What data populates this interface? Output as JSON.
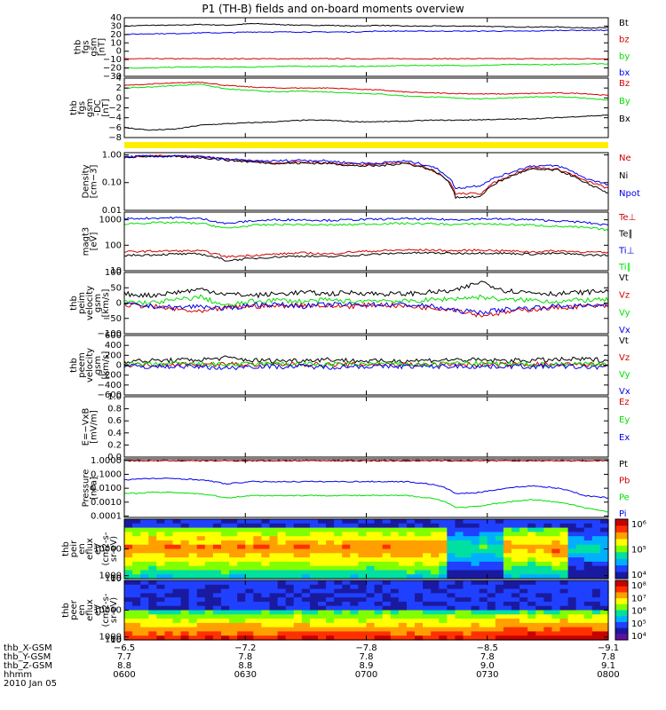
{
  "title": "P1 (TH-B) fields and on-board moments overview",
  "colors": {
    "black": "#000000",
    "red": "#d40000",
    "green": "#00e000",
    "blue": "#0000ee",
    "yellow": "#ffee00"
  },
  "chart_data": [
    {
      "type": "line",
      "ylabel": [
        "thb",
        "fgs",
        "gsm",
        "[nT]"
      ],
      "ylim": [
        -30,
        40
      ],
      "yticks": [
        "40",
        "30",
        "20",
        "10",
        "0",
        "−10",
        "−20",
        "−30"
      ],
      "tickvals": [
        40,
        30,
        20,
        10,
        0,
        -10,
        -20,
        -30
      ],
      "legend": [
        "Bt",
        "bz",
        "by",
        "bx"
      ],
      "series": [
        {
          "name": "Bt",
          "color": "black",
          "values": [
            30,
            31,
            31,
            32,
            31,
            33,
            32,
            31,
            31,
            30,
            31,
            30,
            30,
            30,
            30,
            29,
            29,
            29,
            28,
            28
          ]
        },
        {
          "name": "bz",
          "color": "red",
          "values": [
            -9,
            -9,
            -9,
            -9,
            -9,
            -9,
            -9,
            -9,
            -9,
            -9,
            -9,
            -9,
            -9,
            -9,
            -9,
            -9,
            -9,
            -9,
            -9,
            -9
          ]
        },
        {
          "name": "by",
          "color": "green",
          "values": [
            -20,
            -20,
            -19,
            -19,
            -19,
            -19,
            -18,
            -18,
            -18,
            -18,
            -18,
            -17,
            -17,
            -17,
            -17,
            -16,
            -16,
            -16,
            -15,
            -15
          ]
        },
        {
          "name": "bx",
          "color": "blue",
          "values": [
            20,
            21,
            21,
            22,
            22,
            23,
            23,
            23,
            23,
            23,
            24,
            24,
            24,
            24,
            24,
            24,
            24,
            25,
            25,
            25
          ]
        }
      ]
    },
    {
      "type": "line",
      "ylabel": [
        "thb",
        "fgs",
        "gsm",
        "-DC",
        "[nT]"
      ],
      "ylim": [
        -8,
        4
      ],
      "yticks": [
        "4",
        "2",
        "0",
        "−2",
        "−4",
        "−6",
        "−8"
      ],
      "tickvals": [
        4,
        2,
        0,
        -2,
        -4,
        -6,
        -8
      ],
      "legend": [
        "Bz",
        "By",
        "Bx"
      ],
      "series": [
        {
          "name": "Bz",
          "color": "red",
          "values": [
            2.5,
            2.8,
            3,
            3.2,
            2.5,
            2.2,
            2,
            2,
            2,
            1.8,
            1.6,
            1.2,
            1,
            0.9,
            0.8,
            0.8,
            0.9,
            1,
            0.9,
            0.5
          ]
        },
        {
          "name": "By",
          "color": "green",
          "values": [
            2,
            2.2,
            2.5,
            2.8,
            1.8,
            1.5,
            1.2,
            1.4,
            1.2,
            1,
            0.8,
            0.4,
            0.2,
            0,
            -0.2,
            0,
            0.2,
            0.2,
            0,
            -0.4
          ]
        },
        {
          "name": "Bx",
          "color": "black",
          "values": [
            -6,
            -6.5,
            -6.3,
            -5.5,
            -5.2,
            -5,
            -4.8,
            -4.5,
            -4.5,
            -4.8,
            -4.8,
            -4.7,
            -4.5,
            -4.5,
            -4.4,
            -4.3,
            -4.2,
            -4,
            -3.7,
            -3.5
          ]
        }
      ]
    },
    {
      "type": "line",
      "ylabel": [
        "Density",
        "[cm−3]"
      ],
      "yscale": "log",
      "ylim": [
        0.01,
        1.2
      ],
      "yticks": [
        "1.00",
        "0.10",
        "0.01"
      ],
      "tickvals": [
        1,
        0.1,
        0.01
      ],
      "legend": [
        "Ne",
        "Ni",
        "Npot"
      ],
      "series": [
        {
          "name": "Ne",
          "color": "red",
          "values": [
            0.8,
            0.9,
            0.9,
            0.85,
            0.7,
            0.6,
            0.5,
            0.55,
            0.5,
            0.45,
            0.45,
            0.55,
            0.3,
            0.04,
            0.04,
            0.15,
            0.35,
            0.3,
            0.12,
            0.06
          ]
        },
        {
          "name": "Ni",
          "color": "black",
          "values": [
            0.8,
            0.9,
            0.85,
            0.8,
            0.65,
            0.55,
            0.5,
            0.5,
            0.5,
            0.4,
            0.4,
            0.5,
            0.3,
            0.03,
            0.03,
            0.14,
            0.3,
            0.28,
            0.1,
            0.04
          ]
        },
        {
          "name": "Npot",
          "color": "blue",
          "values": [
            0.85,
            0.9,
            0.9,
            0.85,
            0.7,
            0.6,
            0.6,
            0.65,
            0.6,
            0.5,
            0.5,
            0.6,
            0.4,
            0.06,
            0.08,
            0.2,
            0.4,
            0.4,
            0.15,
            0.08
          ]
        }
      ]
    },
    {
      "type": "line",
      "ylabel": [
        "magt3",
        "[eV]"
      ],
      "yscale": "log",
      "ylim": [
        10,
        2000
      ],
      "yticks": [
        "1000",
        "100",
        "10"
      ],
      "tickvals": [
        1000,
        100,
        10
      ],
      "legend": [
        "Te⊥",
        "Te∥",
        "Ti⊥",
        "Ti∥"
      ],
      "series": [
        {
          "name": "Te⊥",
          "color": "red",
          "values": [
            55,
            58,
            60,
            60,
            35,
            40,
            45,
            50,
            45,
            55,
            60,
            65,
            65,
            60,
            65,
            60,
            55,
            60,
            55,
            50
          ]
        },
        {
          "name": "Te∥",
          "color": "black",
          "values": [
            40,
            42,
            45,
            45,
            25,
            30,
            35,
            38,
            35,
            40,
            45,
            50,
            50,
            48,
            50,
            48,
            45,
            48,
            42,
            40
          ]
        },
        {
          "name": "Ti⊥",
          "color": "blue",
          "values": [
            1100,
            1150,
            1200,
            1100,
            700,
            900,
            1000,
            1000,
            950,
            1000,
            1050,
            1100,
            1050,
            1000,
            1100,
            1050,
            1000,
            900,
            800,
            600
          ]
        },
        {
          "name": "Ti∥",
          "color": "green",
          "values": [
            700,
            750,
            780,
            720,
            450,
            600,
            650,
            650,
            620,
            650,
            700,
            720,
            700,
            650,
            700,
            650,
            620,
            550,
            500,
            400
          ]
        }
      ]
    },
    {
      "type": "line",
      "ylabel": [
        "thb",
        "peim",
        "velocity",
        "gsm",
        "[km/s]"
      ],
      "ylim": [
        -100,
        100
      ],
      "yticks": [
        "100",
        "50",
        "0",
        "−50",
        "−100"
      ],
      "tickvals": [
        100,
        50,
        0,
        -50,
        -100
      ],
      "legend": [
        "Vt",
        "Vz",
        "Vy",
        "Vx"
      ],
      "series": [
        {
          "name": "Vt",
          "color": "black",
          "values": [
            30,
            25,
            35,
            45,
            30,
            25,
            30,
            35,
            30,
            35,
            30,
            30,
            35,
            40,
            70,
            40,
            35,
            30,
            35,
            40
          ]
        },
        {
          "name": "Vz",
          "color": "red",
          "values": [
            -5,
            -10,
            -20,
            -30,
            -15,
            -10,
            -10,
            -5,
            -10,
            -10,
            -5,
            -10,
            -15,
            -20,
            -40,
            -30,
            -20,
            -15,
            -10,
            -10
          ]
        },
        {
          "name": "Vy",
          "color": "green",
          "values": [
            5,
            0,
            10,
            20,
            -10,
            5,
            10,
            5,
            10,
            5,
            10,
            5,
            10,
            15,
            20,
            10,
            10,
            5,
            10,
            10
          ]
        },
        {
          "name": "Vx",
          "color": "blue",
          "values": [
            -5,
            -10,
            -15,
            -10,
            -20,
            -5,
            -5,
            -10,
            -5,
            -5,
            -5,
            -5,
            -10,
            -25,
            -30,
            -20,
            -15,
            -10,
            -10,
            -5
          ]
        }
      ]
    },
    {
      "type": "line",
      "ylabel": [
        "thb",
        "peem",
        "velocity",
        "gsm",
        "[km/s]"
      ],
      "ylim": [
        -600,
        600
      ],
      "yticks": [
        "600",
        "400",
        "200",
        "0",
        "−200",
        "−400",
        "−600"
      ],
      "tickvals": [
        600,
        400,
        200,
        0,
        -200,
        -400,
        -600
      ],
      "legend": [
        "Vt",
        "Vz",
        "Vy",
        "Vx"
      ],
      "series": [
        {
          "name": "Vt",
          "color": "black",
          "values": [
            80,
            90,
            100,
            110,
            150,
            100,
            90,
            100,
            120,
            90,
            80,
            90,
            100,
            110,
            100,
            90,
            100,
            110,
            120,
            100
          ]
        },
        {
          "name": "Vz",
          "color": "red",
          "values": [
            10,
            10,
            20,
            10,
            20,
            10,
            10,
            20,
            10,
            10,
            20,
            10,
            10,
            20,
            10,
            10,
            20,
            10,
            10,
            20
          ]
        },
        {
          "name": "Vy",
          "color": "green",
          "values": [
            20,
            10,
            30,
            20,
            10,
            20,
            30,
            20,
            10,
            20,
            30,
            20,
            10,
            40,
            30,
            20,
            10,
            20,
            30,
            20
          ]
        },
        {
          "name": "Vx",
          "color": "blue",
          "values": [
            -20,
            -30,
            -20,
            -30,
            -60,
            -20,
            -30,
            -20,
            -40,
            -20,
            -30,
            -20,
            -30,
            -20,
            -30,
            -20,
            -30,
            -20,
            -40,
            -30
          ]
        }
      ]
    },
    {
      "type": "line",
      "ylabel": [
        "E=−VxB",
        "[mV/m]"
      ],
      "ylim": [
        0,
        1
      ],
      "yticks": [
        "1.0",
        "0.8",
        "0.6",
        "0.4",
        "0.2",
        "0.0"
      ],
      "tickvals": [
        1,
        0.8,
        0.6,
        0.4,
        0.2,
        0
      ],
      "legend": [
        "Ez",
        "Ey",
        "Ex"
      ],
      "series": []
    },
    {
      "type": "line",
      "ylabel": [
        "Pressure",
        "[nPa]"
      ],
      "yscale": "log",
      "ylim": [
        8e-05,
        1.3
      ],
      "yticks": [
        "1.0000",
        "0.1000",
        "0.0100",
        "0.0010",
        "0.0001"
      ],
      "tickvals": [
        1,
        0.1,
        0.01,
        0.001,
        0.0001
      ],
      "legend": [
        "Pt",
        "Pb",
        "Pe",
        "Pi"
      ],
      "series": [
        {
          "name": "Pt",
          "color": "black",
          "values": [
            0.95,
            0.95,
            0.95,
            0.95,
            0.95,
            0.95,
            0.95,
            0.95,
            0.95,
            0.95,
            0.95,
            0.95,
            0.95,
            0.95,
            0.95,
            0.95,
            0.95,
            0.95,
            0.95,
            0.95
          ]
        },
        {
          "name": "Pb",
          "color": "red",
          "values": [
            1,
            1,
            1,
            1,
            1,
            1,
            1,
            1,
            1,
            1,
            1,
            1,
            1,
            1,
            1,
            1,
            1,
            1,
            1,
            1
          ]
        },
        {
          "name": "Pe",
          "color": "green",
          "values": [
            0.004,
            0.005,
            0.005,
            0.004,
            0.002,
            0.003,
            0.003,
            0.003,
            0.003,
            0.003,
            0.003,
            0.003,
            0.002,
            0.0004,
            0.0005,
            0.001,
            0.0015,
            0.001,
            0.0004,
            0.0002
          ]
        },
        {
          "name": "Pi",
          "color": "blue",
          "values": [
            0.04,
            0.05,
            0.05,
            0.04,
            0.02,
            0.03,
            0.03,
            0.03,
            0.03,
            0.03,
            0.03,
            0.03,
            0.02,
            0.004,
            0.005,
            0.01,
            0.015,
            0.01,
            0.003,
            0.002
          ]
        }
      ]
    },
    {
      "type": "heatmap",
      "ylabel": [
        "thb",
        "peir",
        "en",
        "eflux",
        "eV",
        "(cm2-s-",
        "sr-eV)"
      ],
      "ylim": [
        10,
        20000
      ],
      "yticks": [
        "10000",
        "1000",
        "100",
        "10"
      ],
      "tickvals": [
        10000,
        1000,
        100,
        10
      ],
      "colorbar": [
        "10⁶",
        "10⁵",
        "10⁴"
      ]
    },
    {
      "type": "heatmap",
      "ylabel": [
        "thb",
        "peer",
        "en",
        "eflux",
        "eV",
        "(cm2-s-",
        "sr-eV)"
      ],
      "ylim": [
        10,
        20000
      ],
      "yticks": [
        "10000",
        "1000",
        "100",
        "10"
      ],
      "tickvals": [
        10000,
        1000,
        100,
        10
      ],
      "colorbar": [
        "10⁸",
        "10⁷",
        "10⁶",
        "10⁵",
        "10⁴"
      ]
    }
  ],
  "xaxis": {
    "labels": [
      "thb_X-GSM",
      "thb_Y-GSM",
      "thb_Z-GSM",
      "hhmm",
      "2010 Jan 05"
    ],
    "rows": [
      [
        "−6.5",
        "−7.2",
        "−7.8",
        "−8.5",
        "−9.1"
      ],
      [
        "7.7",
        "7.8",
        "7.8",
        "7.8",
        "7.8"
      ],
      [
        "8.8",
        "8.8",
        "8.9",
        "9.0",
        "9.1"
      ],
      [
        "0600",
        "0630",
        "0700",
        "0730",
        "0800"
      ]
    ]
  }
}
